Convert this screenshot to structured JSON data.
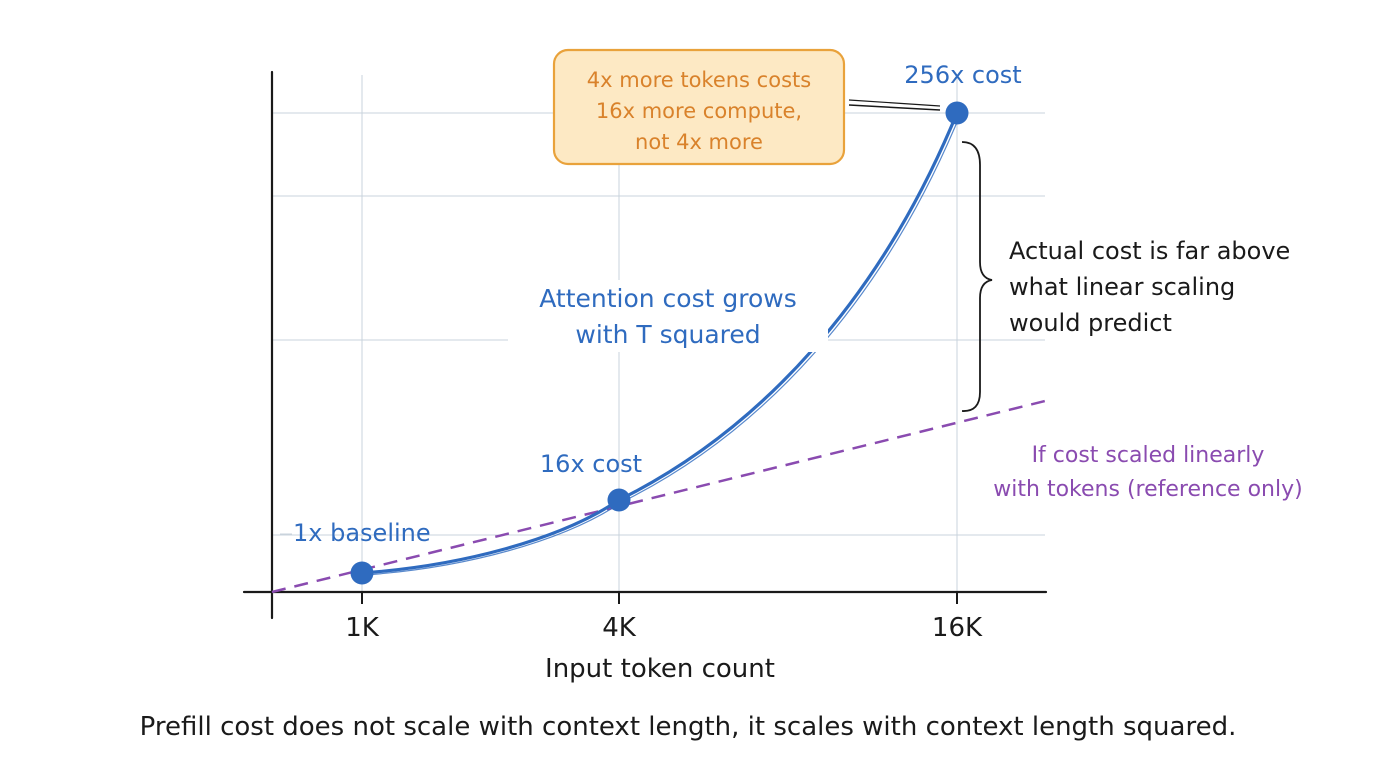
{
  "chart_data": {
    "type": "line",
    "x": [
      "1K",
      "4K",
      "16K"
    ],
    "xlabel": "Input token count",
    "ylabel": "",
    "series": [
      {
        "values": [
          1,
          16,
          256
        ],
        "color": "#2f6bbf"
      },
      {
        "values": [
          1,
          4,
          16
        ],
        "color": "#8a4bb0",
        "style": "dashed"
      }
    ],
    "point_labels": [
      "1x baseline",
      "16x cost",
      "256x cost"
    ],
    "annotations": {
      "callout": [
        "4x more tokens costs",
        "16x more compute,",
        "not 4x more"
      ],
      "curve_note": [
        "Attention cost grows",
        "with T squared"
      ],
      "gap_note": [
        "Actual cost is far above",
        "what linear scaling",
        "would predict"
      ],
      "linear_note": [
        "If cost scaled linearly",
        "with tokens (reference only)"
      ]
    },
    "grid": true,
    "colors": {
      "quadratic": "#2f6bbf",
      "linear": "#8a4bb0",
      "callout_text": "#d9822b",
      "callout_fill": "#fde9c4",
      "callout_border": "#e9a23b",
      "axis": "#1a1a1a",
      "grid": "#c9d3dc"
    }
  },
  "caption": "Prefill cost does not scale with context length, it scales with context length squared."
}
